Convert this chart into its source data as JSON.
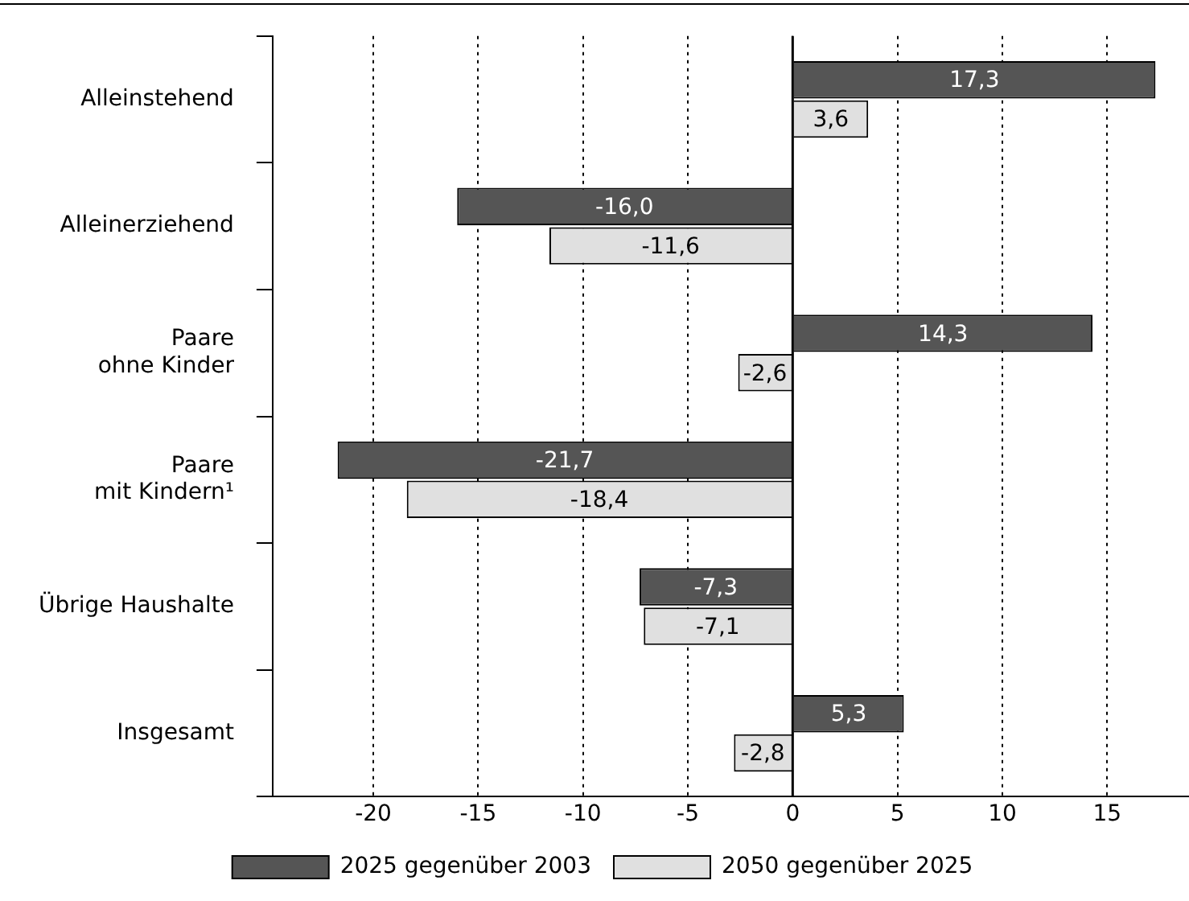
{
  "chart_data": {
    "type": "bar",
    "orientation": "horizontal",
    "categories": [
      "Alleinstehend",
      "Alleinerziehend",
      "Paare\nohne Kinder",
      "Paare\nmit Kindern¹",
      "Übrige Haushalte",
      "Insgesamt"
    ],
    "series": [
      {
        "name": "2025 gegenüber 2003",
        "color": "#555555",
        "values": [
          17.3,
          -16.0,
          14.3,
          -21.7,
          -7.3,
          5.3
        ],
        "value_labels": [
          "17,3",
          "-16,0",
          "14,3",
          "-21,7",
          "-7,3",
          "5,3"
        ]
      },
      {
        "name": "2050 gegenüber 2025",
        "color": "#e0e0e0",
        "values": [
          3.6,
          -11.6,
          -2.6,
          -18.4,
          -7.1,
          -2.8
        ],
        "value_labels": [
          "3,6",
          "-11,6",
          "-2,6",
          "-18,4",
          "-7,1",
          "-2,8"
        ]
      }
    ],
    "xlim": [
      -24.8,
      18.9
    ],
    "xticks": [
      -20,
      -15,
      -10,
      -5,
      0,
      5,
      10,
      15
    ],
    "grid": "x",
    "line_style": "dotted",
    "legend": "bottom",
    "ref_lines": [
      {
        "axis": "x",
        "value": 0
      }
    ]
  }
}
